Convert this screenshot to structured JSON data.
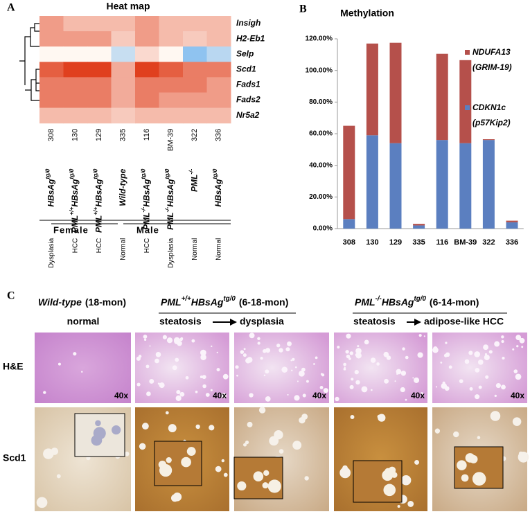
{
  "panel_labels": [
    "A",
    "B",
    "C"
  ],
  "chart_data": [
    {
      "type": "heatmap",
      "title": "Heat map",
      "rows": [
        "Insigh",
        "H2-Eb1",
        "Selp",
        "Scd1",
        "Fads1",
        "Fads2",
        "Nr5a2"
      ],
      "columns": [
        "308",
        "130",
        "129",
        "335",
        "116",
        "BM-39",
        "322",
        "336"
      ],
      "values": [
        [
          0.6,
          0.4,
          0.4,
          0.4,
          0.6,
          0.4,
          0.4,
          0.4
        ],
        [
          0.6,
          0.6,
          0.6,
          0.3,
          0.6,
          0.4,
          0.3,
          0.4
        ],
        [
          0,
          0,
          0,
          -0.4,
          0.2,
          0,
          -0.8,
          -0.5
        ],
        [
          1,
          1.2,
          1.2,
          0.5,
          1.2,
          1,
          0.8,
          0.8
        ],
        [
          0.8,
          0.8,
          0.8,
          0.5,
          0.8,
          0.8,
          0.8,
          0.6
        ],
        [
          0.8,
          0.8,
          0.8,
          0.5,
          0.8,
          0.6,
          0.6,
          0.6
        ],
        [
          0.4,
          0.4,
          0.4,
          0.3,
          0.4,
          0.4,
          0.4,
          0.4
        ]
      ],
      "color_scale": {
        "min": -0.8,
        "max": 1.2,
        "low": "#8fc3f0",
        "mid": "#fff8f2",
        "high": "#e0401e"
      },
      "column_genotypes": [
        [
          "HBsAg",
          "tg/0"
        ],
        [
          "PML",
          "+/+",
          "HBsAg",
          "tg/0"
        ],
        [
          "PML",
          "+/+",
          "HBsAg",
          "tg/0"
        ],
        [
          "Wild-type"
        ],
        [
          "PML",
          "-/-",
          "HBsAg",
          "tg/0"
        ],
        [
          "PML",
          "-/-",
          "HBsAg",
          "tg/0"
        ],
        [
          "PML",
          "-/-"
        ],
        [
          "HBsAg",
          "tg/0"
        ]
      ],
      "sex_groups": [
        "Female",
        "Male"
      ],
      "diagnoses": [
        "Dysplasia",
        "HCC",
        "HCC",
        "Normal",
        "HCC",
        "Dysplasia",
        "Normal",
        "Normal"
      ]
    },
    {
      "type": "bar",
      "title": "Methylation",
      "stacked": true,
      "categories": [
        "308",
        "130",
        "129",
        "335",
        "116",
        "BM-39",
        "322",
        "336"
      ],
      "series": [
        {
          "name": "CDKN1c (p57Kip2)",
          "color": "#5b7fc0",
          "values": [
            6,
            59,
            54,
            2,
            56,
            54,
            56,
            4
          ]
        },
        {
          "name": "NDUFA13 (GRIM-19)",
          "color": "#b5504b",
          "values": [
            59,
            58,
            63.5,
            1,
            54.5,
            52.5,
            0.5,
            1
          ]
        }
      ],
      "ylim": [
        0,
        120
      ],
      "yticks": [
        {
          "value": 0,
          "label": "0.00%"
        },
        {
          "value": 20,
          "label": "20.00%"
        },
        {
          "value": 40,
          "label": "40.00%"
        },
        {
          "value": 60,
          "label": "60.00%"
        },
        {
          "value": 80,
          "label": "80.00%"
        },
        {
          "value": 100,
          "label": "100.00%"
        },
        {
          "value": 120,
          "label": "120.00%"
        }
      ],
      "grid": false,
      "legend": "right"
    }
  ],
  "panel_c": {
    "groups": [
      {
        "genotype": [
          "Wild-type"
        ],
        "age": "(18-mon)",
        "stages": [
          "normal"
        ]
      },
      {
        "genotype": [
          "PML",
          "+/+",
          "HBsAg",
          "tg/0"
        ],
        "age": "(6-18-mon)",
        "stages": [
          "steatosis",
          "dysplasia"
        ]
      },
      {
        "genotype": [
          "PML",
          "-/-",
          "HBsAg",
          "tg/0"
        ],
        "age": "(6-14-mon)",
        "stages": [
          "steatosis",
          "adipose-like HCC"
        ]
      }
    ],
    "row_labels": [
      "H&E",
      "Scd1"
    ],
    "magnifications": [
      "40x",
      "40x",
      "40x",
      "40x",
      "40x"
    ]
  }
}
